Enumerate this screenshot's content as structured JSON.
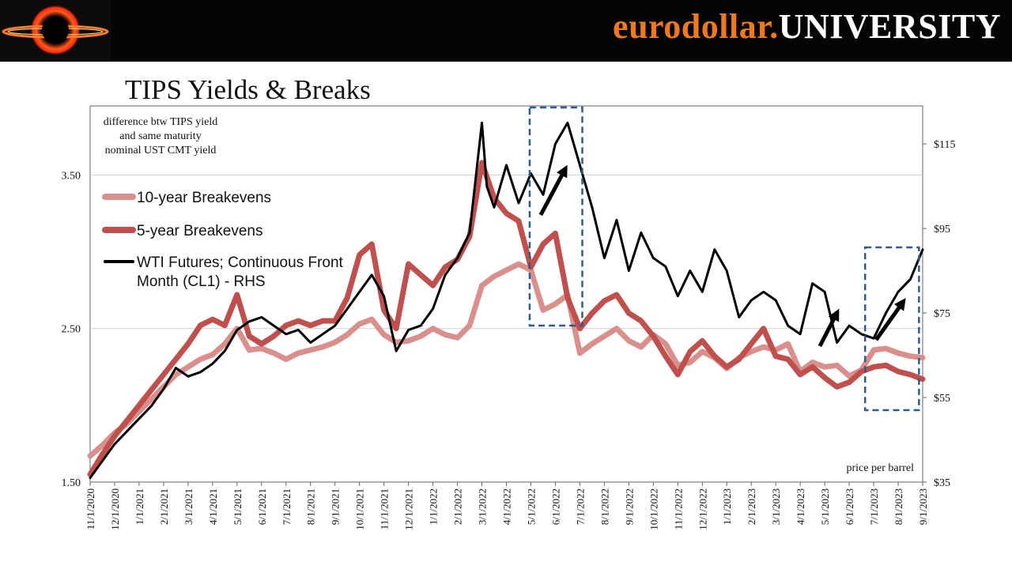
{
  "brand": {
    "part1": "eurodollar.",
    "part2": "UNIVERSITY"
  },
  "logo_icon": "eclipse-ring-logo",
  "chart_data": {
    "type": "line",
    "title": "TIPS Yields & Breaks",
    "note_lines": [
      "difference btw TIPS yield",
      "and same maturity",
      "nominal UST CMT yield"
    ],
    "rhs_caption": "price per barrel",
    "x_ticks": [
      "11/1/2020",
      "12/1/2020",
      "1/1/2021",
      "2/1/2021",
      "3/1/2021",
      "4/1/2021",
      "5/1/2021",
      "6/1/2021",
      "7/1/2021",
      "8/1/2021",
      "9/1/2021",
      "10/1/2021",
      "11/1/2021",
      "12/1/2021",
      "1/1/2022",
      "2/1/2022",
      "3/1/2022",
      "4/1/2022",
      "5/1/2022",
      "6/1/2022",
      "7/1/2022",
      "8/1/2022",
      "9/1/2022",
      "10/1/2022",
      "11/1/2022",
      "12/1/2022",
      "1/1/2023",
      "2/1/2023",
      "3/1/2023",
      "4/1/2023",
      "5/1/2023",
      "6/1/2023",
      "7/1/2023",
      "8/1/2023",
      "9/1/2023"
    ],
    "y_left": {
      "ticks": [
        "1.50",
        "2.50",
        "3.50"
      ],
      "values": [
        1.5,
        2.5,
        3.5
      ],
      "range": [
        1.5,
        3.95
      ]
    },
    "y_right": {
      "ticks": [
        "$35",
        "$55",
        "$75",
        "$95",
        "$115"
      ],
      "values": [
        35,
        55,
        75,
        95,
        115
      ],
      "range": [
        35,
        124
      ]
    },
    "grid": "horizontal at 2.50 and 3.50",
    "legend_position": "top-left",
    "colors": {
      "ten_year": "#d9908c",
      "five_year": "#c0504d",
      "wti": "#000000",
      "box": "#2e5c8a"
    },
    "series": [
      {
        "name": "10-year Breakevens",
        "axis": "left",
        "x_month": [
          0,
          0.5,
          1,
          1.5,
          2,
          2.5,
          3,
          3.5,
          4,
          4.5,
          5,
          5.5,
          6,
          6.5,
          7,
          7.5,
          8,
          8.5,
          9,
          9.5,
          10,
          10.5,
          11,
          11.5,
          12,
          12.5,
          13,
          13.5,
          14,
          14.5,
          15,
          15.5,
          16,
          16.5,
          17,
          17.5,
          18,
          18.5,
          19,
          19.5,
          20,
          20.5,
          21,
          21.5,
          22,
          22.5,
          23,
          23.5,
          24,
          24.5,
          25,
          25.5,
          26,
          26.5,
          27,
          27.5,
          28,
          28.5,
          29,
          29.5,
          30,
          30.5,
          31,
          31.5,
          32,
          32.5,
          33,
          33.5,
          34
        ],
        "values": [
          1.67,
          1.74,
          1.82,
          1.88,
          1.96,
          2.04,
          2.12,
          2.2,
          2.25,
          2.3,
          2.33,
          2.4,
          2.5,
          2.36,
          2.37,
          2.34,
          2.3,
          2.34,
          2.36,
          2.38,
          2.41,
          2.46,
          2.53,
          2.56,
          2.46,
          2.41,
          2.42,
          2.45,
          2.5,
          2.46,
          2.44,
          2.52,
          2.78,
          2.84,
          2.88,
          2.92,
          2.88,
          2.62,
          2.66,
          2.72,
          2.34,
          2.4,
          2.45,
          2.5,
          2.42,
          2.38,
          2.46,
          2.4,
          2.26,
          2.28,
          2.35,
          2.31,
          2.24,
          2.31,
          2.35,
          2.38,
          2.36,
          2.4,
          2.22,
          2.28,
          2.25,
          2.26,
          2.19,
          2.23,
          2.36,
          2.37,
          2.34,
          2.32,
          2.31
        ]
      },
      {
        "name": "5-year Breakevens",
        "axis": "left",
        "x_month": [
          0,
          0.5,
          1,
          1.5,
          2,
          2.5,
          3,
          3.5,
          4,
          4.5,
          5,
          5.5,
          6,
          6.5,
          7,
          7.5,
          8,
          8.5,
          9,
          9.5,
          10,
          10.5,
          11,
          11.5,
          12,
          12.5,
          13,
          13.5,
          14,
          14.5,
          15,
          15.5,
          16,
          16.5,
          17,
          17.5,
          18,
          18.5,
          19,
          19.5,
          20,
          20.5,
          21,
          21.5,
          22,
          22.5,
          23,
          23.5,
          24,
          24.5,
          25,
          25.5,
          26,
          26.5,
          27,
          27.5,
          28,
          28.5,
          29,
          29.5,
          30,
          30.5,
          31,
          31.5,
          32,
          32.5,
          33,
          33.5,
          34
        ],
        "values": [
          1.55,
          1.68,
          1.8,
          1.9,
          2.0,
          2.1,
          2.2,
          2.3,
          2.4,
          2.52,
          2.56,
          2.52,
          2.72,
          2.45,
          2.4,
          2.45,
          2.52,
          2.55,
          2.52,
          2.55,
          2.55,
          2.7,
          2.98,
          3.05,
          2.62,
          2.5,
          2.92,
          2.85,
          2.78,
          2.9,
          2.95,
          3.1,
          3.58,
          3.35,
          3.25,
          3.2,
          2.9,
          3.05,
          3.12,
          2.7,
          2.5,
          2.6,
          2.68,
          2.72,
          2.6,
          2.55,
          2.45,
          2.32,
          2.2,
          2.35,
          2.42,
          2.32,
          2.25,
          2.3,
          2.4,
          2.5,
          2.32,
          2.3,
          2.2,
          2.25,
          2.18,
          2.12,
          2.15,
          2.22,
          2.25,
          2.26,
          2.22,
          2.2,
          2.17
        ]
      },
      {
        "name": "WTI Futures; Continuous Front Month (CL1) - RHS",
        "axis": "right",
        "x_month": [
          0,
          0.5,
          1,
          1.5,
          2,
          2.5,
          3,
          3.5,
          4,
          4.5,
          5,
          5.5,
          6,
          6.5,
          7,
          7.5,
          8,
          8.5,
          9,
          9.5,
          10,
          10.5,
          11,
          11.5,
          12,
          12.5,
          13,
          13.5,
          14,
          14.5,
          15,
          15.5,
          16,
          16.2,
          16.5,
          17,
          17.5,
          18,
          18.5,
          19,
          19.5,
          20,
          20.5,
          21,
          21.5,
          22,
          22.5,
          23,
          23.5,
          24,
          24.5,
          25,
          25.5,
          26,
          26.5,
          27,
          27.5,
          28,
          28.5,
          29,
          29.5,
          30,
          30.5,
          31,
          31.5,
          32,
          32.5,
          33,
          33.5,
          34
        ],
        "values": [
          36,
          40,
          44,
          47,
          50,
          53,
          57,
          62,
          60,
          61,
          63,
          66,
          71,
          73,
          74,
          72,
          70,
          71,
          68,
          70,
          72,
          76,
          80,
          84,
          79,
          66,
          71,
          72,
          76,
          84,
          88,
          94,
          120,
          105,
          100,
          110,
          101,
          108,
          103,
          115,
          120,
          110,
          100,
          88,
          97,
          85,
          94,
          88,
          86,
          79,
          85,
          80,
          90,
          85,
          74,
          78,
          80,
          78,
          72,
          70,
          82,
          80,
          68,
          72,
          70,
          69,
          75,
          80,
          83,
          90
        ]
      }
    ],
    "annotations": [
      {
        "type": "dashed-box",
        "from": "5/1/2022",
        "to": "7/1/2022"
      },
      {
        "type": "dashed-box",
        "from": "6/20/2023",
        "to": "9/1/2023"
      },
      {
        "type": "arrow",
        "label": "up"
      },
      {
        "type": "arrow",
        "label": "up"
      },
      {
        "type": "arrow",
        "label": "up"
      }
    ]
  }
}
